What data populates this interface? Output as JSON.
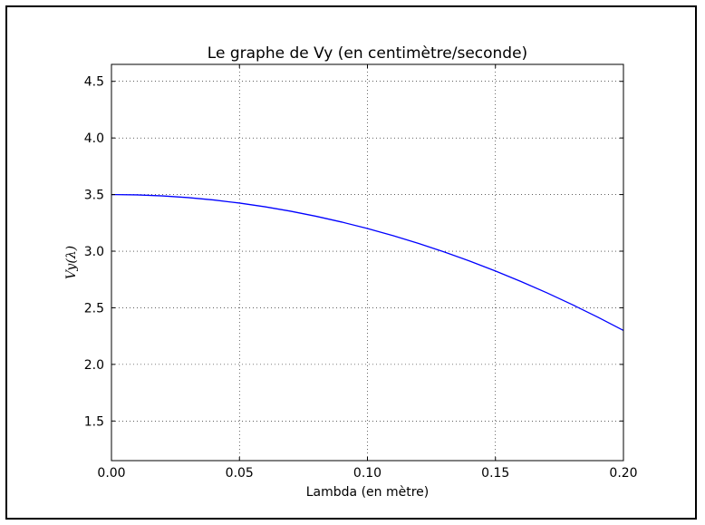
{
  "chart_data": {
    "type": "line",
    "title": "Le graphe de Vy (en centimètre/seconde)",
    "xlabel": "Lambda (en mètre)",
    "ylabel": "Vy(λ)",
    "xlim": [
      0.0,
      0.2
    ],
    "ylim": [
      1.15,
      4.65
    ],
    "x_ticks": [
      0.0,
      0.05,
      0.1,
      0.15,
      0.2
    ],
    "x_tick_labels": [
      "0.00",
      "0.05",
      "0.10",
      "0.15",
      "0.20"
    ],
    "y_ticks": [
      1.5,
      2.0,
      2.5,
      3.0,
      3.5,
      4.0,
      4.5
    ],
    "y_tick_labels": [
      "1.5",
      "2.0",
      "2.5",
      "3.0",
      "3.5",
      "4.0",
      "4.5"
    ],
    "grid": true,
    "series": [
      {
        "color": "#0000ff",
        "x": [
          0.0,
          0.01,
          0.02,
          0.03,
          0.04,
          0.05,
          0.06,
          0.07,
          0.08,
          0.09,
          0.1,
          0.11,
          0.12,
          0.13,
          0.14,
          0.15,
          0.16,
          0.17,
          0.18,
          0.19,
          0.2
        ],
        "y": [
          3.5,
          3.497,
          3.488,
          3.473,
          3.452,
          3.425,
          3.392,
          3.353,
          3.308,
          3.257,
          3.2,
          3.137,
          3.068,
          2.993,
          2.912,
          2.825,
          2.732,
          2.633,
          2.528,
          2.417,
          2.3
        ]
      }
    ]
  }
}
